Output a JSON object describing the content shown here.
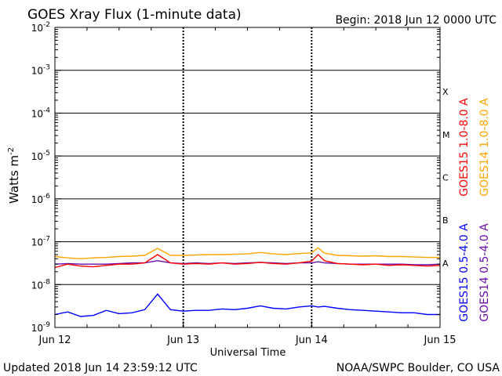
{
  "header": {
    "title": "GOES Xray Flux (1-minute data)",
    "begin": "Begin:  2018 Jun 12 0000 UTC"
  },
  "footer": {
    "updated": "Updated 2018 Jun 14 23:59:12 UTC",
    "credit": "NOAA/SWPC Boulder, CO USA"
  },
  "chart_data": {
    "type": "line",
    "title": "GOES Xray Flux (1-minute data)",
    "xlabel": "Universal Time",
    "ylabel": "Watts m",
    "ylabel_superscript": "-2",
    "y_scale": "log",
    "ylim": [
      1e-09,
      0.01
    ],
    "x_range_days": [
      0,
      3
    ],
    "x_ticks": [
      "Jun 12",
      "Jun 13",
      "Jun 14",
      "Jun 15"
    ],
    "y_ticks": [
      {
        "base": "10",
        "exp": "-2"
      },
      {
        "base": "10",
        "exp": "-3"
      },
      {
        "base": "10",
        "exp": "-4"
      },
      {
        "base": "10",
        "exp": "-5"
      },
      {
        "base": "10",
        "exp": "-6"
      },
      {
        "base": "10",
        "exp": "-7"
      },
      {
        "base": "10",
        "exp": "-8"
      },
      {
        "base": "10",
        "exp": "-9"
      }
    ],
    "flare_classes": [
      {
        "label": "X",
        "level": 0.0001
      },
      {
        "label": "M",
        "level": 1e-05
      },
      {
        "label": "C",
        "level": 1e-06
      },
      {
        "label": "B",
        "level": 1e-07
      },
      {
        "label": "A",
        "level": 1e-08
      }
    ],
    "grid": true,
    "legend_right": [
      {
        "text": "GOES15 1.0-8.0 A",
        "color": "#ff0000"
      },
      {
        "text": "GOES14 1.0-8.0 A",
        "color": "#ffa500"
      },
      {
        "text": "GOES15 0.5-4.0 A",
        "color": "#0000ff"
      },
      {
        "text": "GOES14 0.5-4.0 A",
        "color": "#6a0dad"
      }
    ],
    "series": [
      {
        "name": "GOES15 1.0-8.0 A",
        "color": "#ff0000",
        "x": [
          0,
          0.1,
          0.2,
          0.3,
          0.4,
          0.5,
          0.6,
          0.7,
          0.8,
          0.9,
          1.0,
          1.1,
          1.2,
          1.3,
          1.4,
          1.5,
          1.6,
          1.7,
          1.8,
          1.9,
          2.0,
          2.05,
          2.1,
          2.2,
          2.3,
          2.4,
          2.5,
          2.6,
          2.7,
          2.8,
          2.9,
          3.0
        ],
        "y": [
          2.5e-08,
          3e-08,
          2.7e-08,
          2.6e-08,
          2.8e-08,
          3e-08,
          3e-08,
          3.2e-08,
          5e-08,
          3.2e-08,
          3e-08,
          3.1e-08,
          3e-08,
          3.2e-08,
          3e-08,
          3.1e-08,
          3.3e-08,
          3.1e-08,
          3e-08,
          3.2e-08,
          3.5e-08,
          5e-08,
          3.6e-08,
          3.1e-08,
          3e-08,
          2.9e-08,
          3e-08,
          2.8e-08,
          2.9e-08,
          2.8e-08,
          2.7e-08,
          2.8e-08
        ]
      },
      {
        "name": "GOES14 1.0-8.0 A",
        "color": "#ffa500",
        "x": [
          0,
          0.1,
          0.2,
          0.3,
          0.4,
          0.5,
          0.6,
          0.7,
          0.8,
          0.9,
          1.0,
          1.1,
          1.2,
          1.3,
          1.4,
          1.5,
          1.6,
          1.7,
          1.8,
          1.9,
          2.0,
          2.05,
          2.1,
          2.2,
          2.3,
          2.4,
          2.5,
          2.6,
          2.7,
          2.8,
          2.9,
          3.0
        ],
        "y": [
          4.5e-08,
          4.2e-08,
          4e-08,
          4.2e-08,
          4.3e-08,
          4.5e-08,
          4.6e-08,
          4.8e-08,
          7e-08,
          4.8e-08,
          4.8e-08,
          4.9e-08,
          5e-08,
          5e-08,
          5.1e-08,
          5.2e-08,
          5.6e-08,
          5.2e-08,
          5e-08,
          5.3e-08,
          5.5e-08,
          7.2e-08,
          5.4e-08,
          4.8e-08,
          4.7e-08,
          4.6e-08,
          4.7e-08,
          4.5e-08,
          4.5e-08,
          4.4e-08,
          4.3e-08,
          4.3e-08
        ]
      },
      {
        "name": "GOES15 0.5-4.0 A",
        "color": "#0000ff",
        "x": [
          0,
          0.1,
          0.2,
          0.3,
          0.4,
          0.5,
          0.6,
          0.7,
          0.8,
          0.9,
          1.0,
          1.1,
          1.2,
          1.3,
          1.4,
          1.5,
          1.6,
          1.7,
          1.8,
          1.9,
          2.0,
          2.05,
          2.1,
          2.2,
          2.3,
          2.4,
          2.5,
          2.6,
          2.7,
          2.8,
          2.9,
          3.0
        ],
        "y": [
          2e-09,
          2.3e-09,
          1.8e-09,
          1.9e-09,
          2.5e-09,
          2.1e-09,
          2.2e-09,
          2.6e-09,
          6e-09,
          2.6e-09,
          2.4e-09,
          2.5e-09,
          2.5e-09,
          2.7e-09,
          2.6e-09,
          2.8e-09,
          3.2e-09,
          2.8e-09,
          2.7e-09,
          3e-09,
          3.2e-09,
          3e-09,
          3.1e-09,
          2.8e-09,
          2.6e-09,
          2.5e-09,
          2.4e-09,
          2.3e-09,
          2.2e-09,
          2.2e-09,
          2e-09,
          2e-09
        ]
      },
      {
        "name": "GOES14 0.5-4.0 A",
        "color": "#6a0dad",
        "x": [
          0,
          0.1,
          0.2,
          0.3,
          0.4,
          0.5,
          0.6,
          0.7,
          0.8,
          0.9,
          1.0,
          1.1,
          1.2,
          1.3,
          1.4,
          1.5,
          1.6,
          1.7,
          1.8,
          1.9,
          2.0,
          2.05,
          2.1,
          2.2,
          2.3,
          2.4,
          2.5,
          2.6,
          2.7,
          2.8,
          2.9,
          3.0
        ],
        "y": [
          3e-08,
          3.1e-08,
          3e-08,
          3e-08,
          3e-08,
          3.1e-08,
          3.2e-08,
          3.2e-08,
          3.6e-08,
          3.2e-08,
          3.1e-08,
          3.2e-08,
          3.1e-08,
          3.2e-08,
          3.1e-08,
          3.2e-08,
          3.3e-08,
          3.2e-08,
          3.1e-08,
          3.2e-08,
          3.2e-08,
          3.4e-08,
          3.2e-08,
          3.1e-08,
          3e-08,
          3e-08,
          3e-08,
          3e-08,
          3e-08,
          2.9e-08,
          2.9e-08,
          3e-08
        ]
      }
    ]
  }
}
